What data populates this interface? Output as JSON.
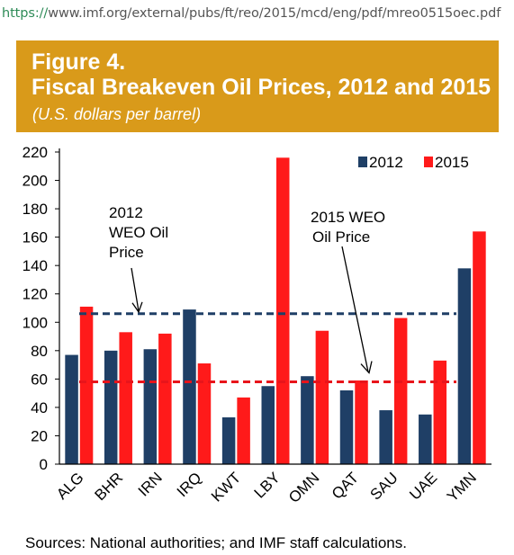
{
  "browser": {
    "url_scheme": "https://",
    "url_rest": "www.imf.org/external/pubs/ft/reo/2015/mcd/eng/pdf/mreo0515oec.pdf"
  },
  "figure": {
    "number": "Figure 4.",
    "title": "Fiscal Breakeven Oil Prices, 2012 and 2015",
    "unit": "(U.S. dollars per barrel)",
    "source": "Sources: National authorities; and IMF staff calculations."
  },
  "colors": {
    "header_bg": "#d99a1a",
    "series_2012": "#1f3f66",
    "series_2015": "#ff1a1a",
    "ref_2012": "#1f3f66",
    "ref_2015": "#e8141b"
  },
  "chart_data": {
    "type": "bar",
    "categories": [
      "ALG",
      "BHR",
      "IRN",
      "IRQ",
      "KWT",
      "LBY",
      "OMN",
      "QAT",
      "SAU",
      "UAE",
      "YMN"
    ],
    "series": [
      {
        "name": "2012",
        "values": [
          77,
          80,
          81,
          109,
          33,
          55,
          62,
          52,
          38,
          35,
          138
        ]
      },
      {
        "name": "2015",
        "values": [
          111,
          93,
          92,
          71,
          47,
          216,
          94,
          59,
          103,
          73,
          164
        ]
      }
    ],
    "yticks": [
      0,
      20,
      40,
      60,
      80,
      100,
      120,
      140,
      160,
      180,
      200,
      220
    ],
    "ylim": [
      0,
      220
    ],
    "legend_position": "top-right",
    "grid": false,
    "reference_lines": [
      {
        "name": "2012 WEO Oil Price",
        "value": 106,
        "label_lines": [
          "2012",
          "WEO Oil",
          "Price"
        ]
      },
      {
        "name": "2015 WEO Oil Price",
        "value": 58,
        "label_lines": [
          "2015 WEO",
          "Oil Price"
        ]
      }
    ]
  }
}
